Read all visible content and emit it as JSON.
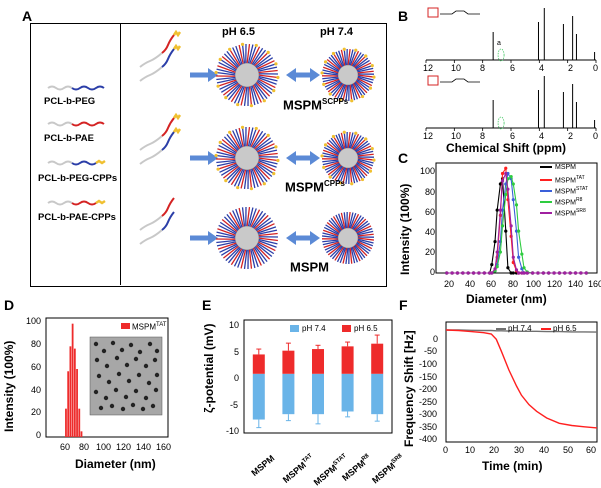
{
  "panels": {
    "A": {
      "letter": "A",
      "chains": [
        "PCL-b-PEG",
        "PCL-b-PAE",
        "PCL-b-PEG-CPPs",
        "PCL-b-PAE-CPPs"
      ],
      "ph_left": "pH 6.5",
      "ph_right": "pH 7.4",
      "rows": [
        {
          "base": "MSPM",
          "sup": "SCPPs"
        },
        {
          "base": "MSPM",
          "sup": "CPPs"
        },
        {
          "base": "MSPM",
          "sup": ""
        }
      ]
    },
    "B": {
      "letter": "B",
      "xlabel": "Chemical Shift (ppm)",
      "xticks": [
        "12",
        "10",
        "8",
        "6",
        "4",
        "2",
        "0"
      ],
      "peak_label_a": "a"
    },
    "C": {
      "letter": "C",
      "xlabel": "Diameter (nm)",
      "ylabel": "Intensity (100%)",
      "xticks": [
        "20",
        "40",
        "60",
        "80",
        "100",
        "120",
        "140",
        "160"
      ],
      "yticks": [
        "0",
        "20",
        "40",
        "60",
        "80",
        "100"
      ]
    },
    "D": {
      "letter": "D",
      "xlabel": "Diameter (nm)",
      "ylabel": "Intensity (100%)",
      "xticks": [
        "60",
        "80",
        "100",
        "120",
        "140",
        "160"
      ],
      "yticks": [
        "0",
        "20",
        "40",
        "60",
        "80",
        "100"
      ]
    },
    "E": {
      "letter": "E",
      "ylabel": "ζ-potential (mV)",
      "yticks": [
        "-10",
        "-5",
        "0",
        "5",
        "10"
      ]
    },
    "F": {
      "letter": "F",
      "xlabel": "Time (min)",
      "ylabel": "Frequency Shift [Hz]",
      "xticks": [
        "0",
        "10",
        "20",
        "30",
        "40",
        "50",
        "60"
      ],
      "yticks": [
        "0",
        "-50",
        "-100",
        "-150",
        "-200",
        "-250",
        "-300",
        "-350",
        "-400"
      ]
    }
  },
  "chart_data": [
    {
      "id": "C",
      "type": "line",
      "title": "",
      "xlabel": "Diameter (nm)",
      "ylabel": "Intensity (100%)",
      "xlim": [
        10,
        160
      ],
      "ylim": [
        0,
        105
      ],
      "x": [
        20,
        25,
        30,
        35,
        40,
        45,
        50,
        55,
        60,
        62,
        65,
        67,
        70,
        72,
        75,
        77,
        80,
        82,
        85,
        87,
        90,
        92,
        95,
        100,
        105,
        110,
        115,
        120,
        125,
        130,
        135,
        140,
        145,
        150
      ],
      "series": [
        {
          "name": "MSPM",
          "base": "MSPM",
          "sup": "",
          "color": "#000000",
          "marker": "square",
          "values": [
            0,
            0,
            0,
            0,
            0,
            0,
            0,
            0,
            0,
            8,
            30,
            60,
            85,
            90,
            40,
            5,
            0,
            0,
            0,
            0,
            0,
            0,
            0,
            0,
            0,
            0,
            0,
            0,
            0,
            0,
            0,
            0,
            0,
            0
          ]
        },
        {
          "name": "MSPMTAT",
          "base": "MSPM",
          "sup": "TAT",
          "color": "#ff2020",
          "marker": "circle",
          "values": [
            0,
            0,
            0,
            0,
            0,
            0,
            0,
            0,
            0,
            0,
            3,
            15,
            55,
            95,
            100,
            70,
            35,
            10,
            2,
            0,
            0,
            0,
            0,
            0,
            0,
            0,
            0,
            0,
            0,
            0,
            0,
            0,
            0,
            0
          ]
        },
        {
          "name": "MSPMSTAT",
          "base": "MSPM",
          "sup": "STAT",
          "color": "#3a5fd9",
          "marker": "triangle",
          "values": [
            0,
            0,
            0,
            0,
            0,
            0,
            0,
            0,
            0,
            0,
            2,
            8,
            30,
            60,
            85,
            95,
            90,
            70,
            40,
            15,
            4,
            0,
            0,
            0,
            0,
            0,
            0,
            0,
            0,
            0,
            0,
            0,
            0,
            0
          ]
        },
        {
          "name": "MSPMR8",
          "base": "MSPM",
          "sup": "R8",
          "color": "#2ecc40",
          "marker": "diamond",
          "values": [
            0,
            0,
            0,
            0,
            0,
            0,
            0,
            0,
            0,
            0,
            2,
            6,
            20,
            45,
            75,
            90,
            92,
            85,
            65,
            40,
            18,
            5,
            1,
            0,
            0,
            0,
            0,
            0,
            0,
            0,
            0,
            0,
            0,
            0
          ]
        },
        {
          "name": "MSPMSR8",
          "base": "MSPM",
          "sup": "SR8",
          "color": "#a020a0",
          "marker": "triangle-down",
          "values": [
            0,
            0,
            0,
            0,
            0,
            0,
            0,
            0,
            0,
            0,
            4,
            20,
            60,
            88,
            95,
            80,
            45,
            15,
            3,
            0,
            0,
            0,
            0,
            0,
            0,
            0,
            0,
            0,
            0,
            0,
            0,
            0,
            0,
            0
          ]
        }
      ]
    },
    {
      "id": "D",
      "type": "bar",
      "title": "",
      "xlabel": "Diameter (nm)",
      "ylabel": "Intensity (100%)",
      "xlim": [
        50,
        160
      ],
      "ylim": [
        0,
        105
      ],
      "legend_base": "MSPM",
      "legend_sup": "TAT",
      "color": "#ee2b2b",
      "x": [
        68,
        70,
        72,
        74,
        76,
        78,
        80,
        82
      ],
      "values": [
        25,
        58,
        80,
        100,
        78,
        60,
        25,
        5
      ]
    },
    {
      "id": "E",
      "type": "bar",
      "title": "",
      "ylabel": "ζ-potential (mV)",
      "ylim": [
        -11,
        10
      ],
      "categories": [
        {
          "base": "MSPM",
          "sup": ""
        },
        {
          "base": "MSPM",
          "sup": "TAT"
        },
        {
          "base": "MSPM",
          "sup": "STAT"
        },
        {
          "base": "MSPM",
          "sup": "R8"
        },
        {
          "base": "MSPM",
          "sup": "SR8"
        }
      ],
      "series": [
        {
          "name": "pH 7.4",
          "color": "#6ab4e8",
          "values": [
            -8.5,
            -7.5,
            -7.5,
            -7.0,
            -7.5
          ],
          "errors": [
            1.5,
            1.2,
            1.8,
            1.0,
            1.3
          ]
        },
        {
          "name": "pH 6.5",
          "color": "#ee2b2b",
          "values": [
            3.6,
            4.3,
            4.6,
            5.1,
            5.6
          ],
          "errors": [
            1.0,
            1.4,
            0.7,
            0.8,
            1.6
          ]
        }
      ]
    },
    {
      "id": "F",
      "type": "line",
      "title": "",
      "xlabel": "Time (min)",
      "ylabel": "Frequency Shift [Hz]",
      "xlim": [
        0,
        60
      ],
      "ylim": [
        -420,
        30
      ],
      "x": [
        0,
        5,
        10,
        15,
        18,
        20,
        22,
        25,
        28,
        30,
        33,
        36,
        40,
        45,
        50,
        55,
        60
      ],
      "series": [
        {
          "name": "pH 7.4",
          "color": "#707070",
          "values": [
            0,
            0,
            -1,
            -2,
            -2,
            -3,
            -3,
            -4,
            -4,
            -5,
            -5,
            -5,
            -6,
            -6,
            -7,
            -7,
            -8
          ]
        },
        {
          "name": "pH 6.5",
          "color": "#ff2020",
          "values": [
            0,
            -2,
            -6,
            -10,
            -15,
            -35,
            -80,
            -150,
            -210,
            -245,
            -280,
            -305,
            -330,
            -350,
            -358,
            -363,
            -367
          ]
        }
      ]
    }
  ]
}
